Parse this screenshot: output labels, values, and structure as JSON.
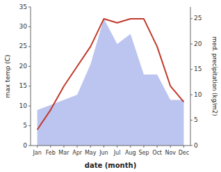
{
  "chart_data": {
    "type": "line",
    "categories": [
      "Jan",
      "Feb",
      "Mar",
      "Apr",
      "May",
      "Jun",
      "Jul",
      "Aug",
      "Sep",
      "Oct",
      "Nov",
      "Dec"
    ],
    "series": [
      {
        "type": "area",
        "axis": "y2",
        "color": "#bcc5f0",
        "values": [
          7,
          8,
          9,
          10,
          16,
          25,
          20,
          22,
          14,
          14,
          9,
          9
        ]
      },
      {
        "type": "line",
        "color": "#c0392b",
        "values": [
          4,
          9,
          15,
          20,
          25,
          32,
          31,
          32,
          32,
          25,
          15,
          11
        ]
      }
    ],
    "xlabel": "date (month)",
    "ylabel": "max temp (C)",
    "y2label": "med. precipitation (kg/m2)",
    "ylim": [
      0,
      35
    ],
    "yticks": [
      0,
      5,
      10,
      15,
      20,
      25,
      30,
      35
    ],
    "y2lim": [
      0,
      27.3
    ],
    "y2ticks": [
      0,
      5,
      10,
      15,
      20,
      25
    ],
    "grid": false
  }
}
